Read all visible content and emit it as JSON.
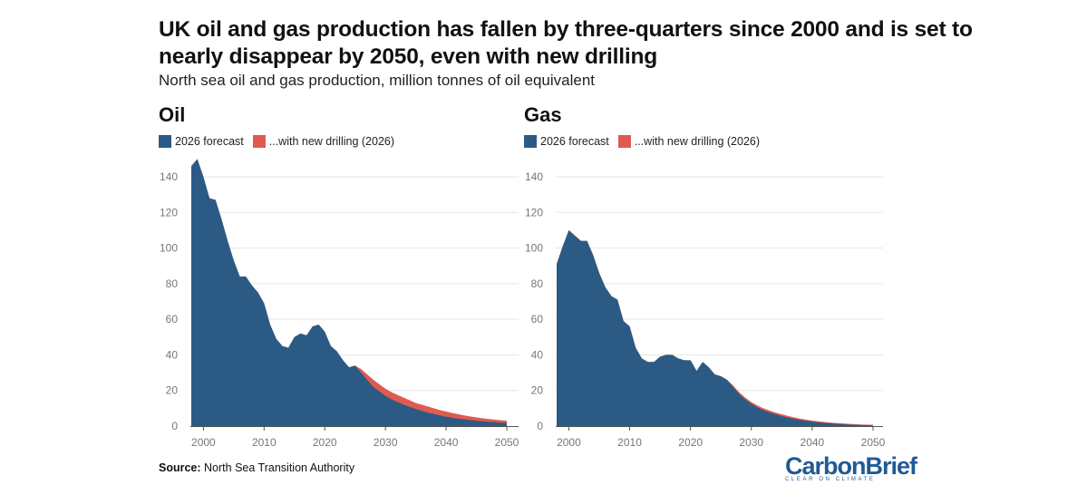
{
  "title": "UK oil and gas production has fallen by three-quarters since 2000 and is set to nearly disappear by 2050, even with new drilling",
  "subtitle": "North sea oil and gas production, million tonnes of oil equivalent",
  "source_label": "Source:",
  "source_text": "North Sea Transition Authority",
  "brand": {
    "name": "CarbonBrief",
    "tagline": "CLEAR ON CLIMATE"
  },
  "colors": {
    "forecast": "#2b5b84",
    "new_drilling": "#e05a50",
    "grid": "#e6e6e6",
    "axis": "#555555"
  },
  "chart_data": [
    {
      "type": "area",
      "title": "Oil",
      "legend": [
        "2026 forecast",
        "...with new drilling (2026)"
      ],
      "xlim": [
        1998,
        2050
      ],
      "ylim": [
        0,
        150
      ],
      "x_ticks": [
        2000,
        2010,
        2020,
        2030,
        2040,
        2050
      ],
      "y_ticks": [
        0,
        20,
        40,
        60,
        80,
        100,
        120,
        140
      ],
      "series": [
        {
          "name": "2026 forecast",
          "stack_order": 1,
          "x": [
            1998,
            1999,
            2000,
            2001,
            2002,
            2003,
            2004,
            2005,
            2006,
            2007,
            2008,
            2009,
            2010,
            2011,
            2012,
            2013,
            2014,
            2015,
            2016,
            2017,
            2018,
            2019,
            2020,
            2021,
            2022,
            2023,
            2024,
            2025,
            2026,
            2027,
            2028,
            2029,
            2030,
            2031,
            2032,
            2033,
            2034,
            2035,
            2036,
            2037,
            2038,
            2039,
            2040,
            2041,
            2042,
            2043,
            2044,
            2045,
            2046,
            2047,
            2048,
            2049,
            2050
          ],
          "values": [
            146,
            150,
            140,
            128,
            127,
            116,
            104,
            93,
            84,
            84,
            79,
            75,
            69,
            57,
            49,
            45,
            44,
            50,
            52,
            51,
            56,
            57,
            53,
            45,
            42,
            37,
            33,
            34,
            30,
            26,
            22,
            19.5,
            17,
            15,
            13.5,
            12,
            10.8,
            9.6,
            8.6,
            7.6,
            6.8,
            6,
            5.3,
            4.7,
            4.2,
            3.8,
            3.4,
            3,
            2.7,
            2.4,
            2.2,
            1.9,
            1.7
          ]
        },
        {
          "name": "...with new drilling (2026)",
          "stack_order": 2,
          "x": [
            1998,
            1999,
            2000,
            2001,
            2002,
            2003,
            2004,
            2005,
            2006,
            2007,
            2008,
            2009,
            2010,
            2011,
            2012,
            2013,
            2014,
            2015,
            2016,
            2017,
            2018,
            2019,
            2020,
            2021,
            2022,
            2023,
            2024,
            2025,
            2026,
            2027,
            2028,
            2029,
            2030,
            2031,
            2032,
            2033,
            2034,
            2035,
            2036,
            2037,
            2038,
            2039,
            2040,
            2041,
            2042,
            2043,
            2044,
            2045,
            2046,
            2047,
            2048,
            2049,
            2050
          ],
          "values": [
            146,
            150,
            140,
            128,
            127,
            116,
            104,
            93,
            84,
            84,
            79,
            75,
            69,
            57,
            49,
            45,
            44,
            50,
            52,
            51,
            56,
            57,
            53,
            45,
            42,
            37,
            33,
            34,
            32,
            29,
            26,
            23.5,
            21,
            19,
            17.5,
            16,
            14.5,
            13,
            12,
            11,
            10,
            9,
            8.2,
            7.4,
            6.7,
            6,
            5.4,
            4.9,
            4.4,
            4,
            3.6,
            3.3,
            3
          ]
        }
      ]
    },
    {
      "type": "area",
      "title": "Gas",
      "legend": [
        "2026 forecast",
        "...with new drilling (2026)"
      ],
      "xlim": [
        1998,
        2050
      ],
      "ylim": [
        0,
        150
      ],
      "x_ticks": [
        2000,
        2010,
        2020,
        2030,
        2040,
        2050
      ],
      "y_ticks": [
        0,
        20,
        40,
        60,
        80,
        100,
        120,
        140
      ],
      "series": [
        {
          "name": "2026 forecast",
          "stack_order": 1,
          "x": [
            1998,
            1999,
            2000,
            2001,
            2002,
            2003,
            2004,
            2005,
            2006,
            2007,
            2008,
            2009,
            2010,
            2011,
            2012,
            2013,
            2014,
            2015,
            2016,
            2017,
            2018,
            2019,
            2020,
            2021,
            2022,
            2023,
            2024,
            2025,
            2026,
            2027,
            2028,
            2029,
            2030,
            2031,
            2032,
            2033,
            2034,
            2035,
            2036,
            2037,
            2038,
            2039,
            2040,
            2041,
            2042,
            2043,
            2044,
            2045,
            2046,
            2047,
            2048,
            2049,
            2050
          ],
          "values": [
            91,
            101,
            110,
            107,
            104,
            104,
            96,
            86,
            78,
            73,
            71,
            59,
            56,
            44,
            38,
            36,
            36,
            39,
            40,
            40,
            38,
            37,
            37,
            31,
            36,
            33,
            29,
            28,
            26,
            22,
            18,
            15,
            12.5,
            10.5,
            9,
            7.7,
            6.6,
            5.6,
            4.8,
            4.1,
            3.5,
            3,
            2.5,
            2.1,
            1.8,
            1.5,
            1.3,
            1.1,
            0.9,
            0.7,
            0.6,
            0.5,
            0.4
          ]
        },
        {
          "name": "...with new drilling (2026)",
          "stack_order": 2,
          "x": [
            1998,
            1999,
            2000,
            2001,
            2002,
            2003,
            2004,
            2005,
            2006,
            2007,
            2008,
            2009,
            2010,
            2011,
            2012,
            2013,
            2014,
            2015,
            2016,
            2017,
            2018,
            2019,
            2020,
            2021,
            2022,
            2023,
            2024,
            2025,
            2026,
            2027,
            2028,
            2029,
            2030,
            2031,
            2032,
            2033,
            2034,
            2035,
            2036,
            2037,
            2038,
            2039,
            2040,
            2041,
            2042,
            2043,
            2044,
            2045,
            2046,
            2047,
            2048,
            2049,
            2050
          ],
          "values": [
            91,
            101,
            110,
            107,
            104,
            104,
            96,
            86,
            78,
            73,
            71,
            59,
            56,
            44,
            38,
            36,
            36,
            39,
            40,
            40,
            38,
            37,
            37,
            31,
            36,
            33,
            29,
            28,
            26,
            22.8,
            19,
            16,
            13.5,
            11.6,
            10,
            8.7,
            7.6,
            6.6,
            5.7,
            4.9,
            4.2,
            3.6,
            3.1,
            2.7,
            2.3,
            2,
            1.7,
            1.5,
            1.3,
            1.1,
            0.9,
            0.8,
            0.7
          ]
        }
      ]
    }
  ]
}
